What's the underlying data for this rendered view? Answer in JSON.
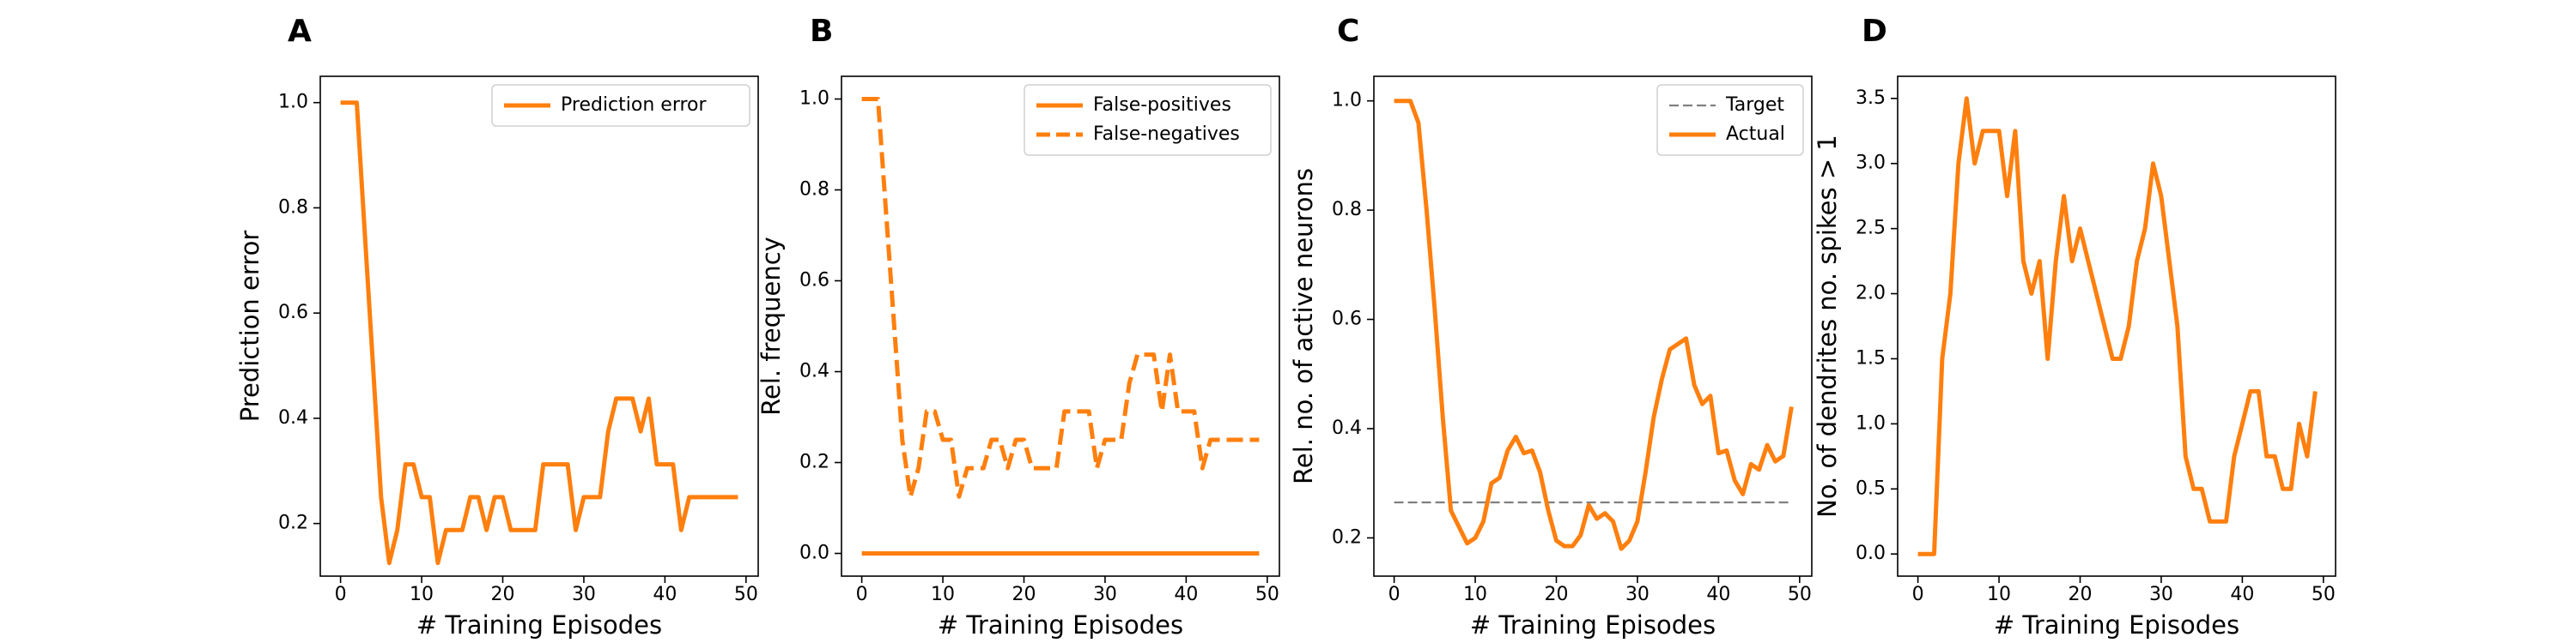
{
  "chart_data": [
    {
      "panel_letter": "A",
      "type": "line",
      "xlabel": "# Training Episodes",
      "ylabel": "Prediction error",
      "xlim": [
        -2.5,
        51.5
      ],
      "ylim": [
        0.1,
        1.05
      ],
      "xticks": [
        0,
        10,
        20,
        30,
        40,
        50
      ],
      "yticks": [
        0.2,
        0.4,
        0.6,
        0.8,
        1.0
      ],
      "ytick_labels": [
        "0.2",
        "0.4",
        "0.6",
        "0.8",
        "1.0"
      ],
      "legend_position": "upper right",
      "series": [
        {
          "name": "Prediction error",
          "style": "solid",
          "color": "#ff7f0e",
          "x": [
            0,
            1,
            2,
            3,
            4,
            5,
            6,
            7,
            8,
            9,
            10,
            11,
            12,
            13,
            14,
            15,
            16,
            17,
            18,
            19,
            20,
            21,
            22,
            23,
            24,
            25,
            26,
            27,
            28,
            29,
            30,
            31,
            32,
            33,
            34,
            35,
            36,
            37,
            38,
            39,
            40,
            41,
            42,
            43,
            44,
            45,
            46,
            47,
            48,
            49
          ],
          "y": [
            1.0,
            1.0,
            1.0,
            0.75,
            0.5,
            0.25,
            0.125,
            0.1875,
            0.3125,
            0.3125,
            0.25,
            0.25,
            0.125,
            0.1875,
            0.1875,
            0.1875,
            0.25,
            0.25,
            0.1875,
            0.25,
            0.25,
            0.1875,
            0.1875,
            0.1875,
            0.1875,
            0.3125,
            0.3125,
            0.3125,
            0.3125,
            0.1875,
            0.25,
            0.25,
            0.25,
            0.375,
            0.4375,
            0.4375,
            0.4375,
            0.375,
            0.4375,
            0.3125,
            0.3125,
            0.3125,
            0.1875,
            0.25,
            0.25,
            0.25,
            0.25,
            0.25,
            0.25,
            0.25
          ]
        }
      ]
    },
    {
      "panel_letter": "B",
      "type": "line",
      "xlabel": "# Training Episodes",
      "ylabel": "Rel. frequency",
      "xlim": [
        -2.5,
        51.5
      ],
      "ylim": [
        -0.05,
        1.05
      ],
      "xticks": [
        0,
        10,
        20,
        30,
        40,
        50
      ],
      "yticks": [
        0.0,
        0.2,
        0.4,
        0.6,
        0.8,
        1.0
      ],
      "ytick_labels": [
        "0.0",
        "0.2",
        "0.4",
        "0.6",
        "0.8",
        "1.0"
      ],
      "legend_position": "upper right",
      "series": [
        {
          "name": "False-positives",
          "style": "solid",
          "color": "#ff7f0e",
          "x": [
            0,
            49
          ],
          "y": [
            0.0,
            0.0
          ]
        },
        {
          "name": "False-negatives",
          "style": "dashed",
          "color": "#ff7f0e",
          "x": [
            0,
            1,
            2,
            3,
            4,
            5,
            6,
            7,
            8,
            9,
            10,
            11,
            12,
            13,
            14,
            15,
            16,
            17,
            18,
            19,
            20,
            21,
            22,
            23,
            24,
            25,
            26,
            27,
            28,
            29,
            30,
            31,
            32,
            33,
            34,
            35,
            36,
            37,
            38,
            39,
            40,
            41,
            42,
            43,
            44,
            45,
            46,
            47,
            48,
            49
          ],
          "y": [
            1.0,
            1.0,
            1.0,
            0.75,
            0.5,
            0.25,
            0.125,
            0.1875,
            0.3125,
            0.3125,
            0.25,
            0.25,
            0.125,
            0.1875,
            0.1875,
            0.1875,
            0.25,
            0.25,
            0.1875,
            0.25,
            0.25,
            0.1875,
            0.1875,
            0.1875,
            0.1875,
            0.3125,
            0.3125,
            0.3125,
            0.3125,
            0.1875,
            0.25,
            0.25,
            0.25,
            0.375,
            0.4375,
            0.4375,
            0.4375,
            0.3125,
            0.4375,
            0.3125,
            0.3125,
            0.3125,
            0.1875,
            0.25,
            0.25,
            0.25,
            0.25,
            0.25,
            0.25,
            0.25
          ]
        }
      ]
    },
    {
      "panel_letter": "C",
      "type": "line",
      "xlabel": "# Training Episodes",
      "ylabel": "Rel. no. of active neurons",
      "xlim": [
        -2.5,
        51.5
      ],
      "ylim": [
        0.13,
        1.045
      ],
      "xticks": [
        0,
        10,
        20,
        30,
        40,
        50
      ],
      "yticks": [
        0.2,
        0.4,
        0.6,
        0.8,
        1.0
      ],
      "ytick_labels": [
        "0.2",
        "0.4",
        "0.6",
        "0.8",
        "1.0"
      ],
      "legend_position": "upper right",
      "series": [
        {
          "name": "Target",
          "style": "dashed",
          "color": "#808080",
          "x": [
            0,
            49
          ],
          "y": [
            0.265,
            0.265
          ]
        },
        {
          "name": "Actual",
          "style": "solid",
          "color": "#ff7f0e",
          "x": [
            0,
            1,
            2,
            3,
            4,
            5,
            6,
            7,
            8,
            9,
            10,
            11,
            12,
            13,
            14,
            15,
            16,
            17,
            18,
            19,
            20,
            21,
            22,
            23,
            24,
            25,
            26,
            27,
            28,
            29,
            30,
            31,
            32,
            33,
            34,
            35,
            36,
            37,
            38,
            39,
            40,
            41,
            42,
            43,
            44,
            45,
            46,
            47,
            48,
            49
          ],
          "y": [
            1.0,
            1.0,
            1.0,
            0.96,
            0.8,
            0.62,
            0.42,
            0.25,
            0.22,
            0.19,
            0.2,
            0.23,
            0.3,
            0.31,
            0.36,
            0.385,
            0.355,
            0.36,
            0.32,
            0.25,
            0.195,
            0.185,
            0.185,
            0.205,
            0.26,
            0.235,
            0.245,
            0.23,
            0.18,
            0.195,
            0.23,
            0.32,
            0.42,
            0.49,
            0.545,
            0.555,
            0.565,
            0.48,
            0.445,
            0.46,
            0.355,
            0.36,
            0.305,
            0.28,
            0.335,
            0.325,
            0.37,
            0.34,
            0.35,
            0.44
          ]
        }
      ]
    },
    {
      "panel_letter": "D",
      "type": "line",
      "xlabel": "# Training Episodes",
      "ylabel": "No. of dendrites no. spikes > 1",
      "xlim": [
        -2.5,
        51.5
      ],
      "ylim": [
        -0.17,
        3.67
      ],
      "xticks": [
        0,
        10,
        20,
        30,
        40,
        50
      ],
      "yticks": [
        0.0,
        0.5,
        1.0,
        1.5,
        2.0,
        2.5,
        3.0,
        3.5
      ],
      "ytick_labels": [
        "0.0",
        "0.5",
        "1.0",
        "1.5",
        "2.0",
        "2.5",
        "3.0",
        "3.5"
      ],
      "legend_position": "none",
      "series": [
        {
          "style": "solid",
          "color": "#ff7f0e",
          "x": [
            0,
            1,
            2,
            3,
            4,
            5,
            6,
            7,
            8,
            9,
            10,
            11,
            12,
            13,
            14,
            15,
            16,
            17,
            18,
            19,
            20,
            21,
            22,
            23,
            24,
            25,
            26,
            27,
            28,
            29,
            30,
            31,
            32,
            33,
            34,
            35,
            36,
            37,
            38,
            39,
            40,
            41,
            42,
            43,
            44,
            45,
            46,
            47,
            48,
            49
          ],
          "y": [
            0.0,
            0.0,
            0.0,
            1.5,
            2.0,
            3.0,
            3.5,
            3.0,
            3.25,
            3.25,
            3.25,
            2.75,
            3.25,
            2.25,
            2.0,
            2.25,
            1.5,
            2.25,
            2.75,
            2.25,
            2.5,
            2.25,
            2.0,
            1.75,
            1.5,
            1.5,
            1.75,
            2.25,
            2.5,
            3.0,
            2.75,
            2.25,
            1.75,
            0.75,
            0.5,
            0.5,
            0.25,
            0.25,
            0.25,
            0.75,
            1.0,
            1.25,
            1.25,
            0.75,
            0.75,
            0.5,
            0.5,
            1.0,
            0.75,
            1.25
          ]
        }
      ]
    }
  ]
}
